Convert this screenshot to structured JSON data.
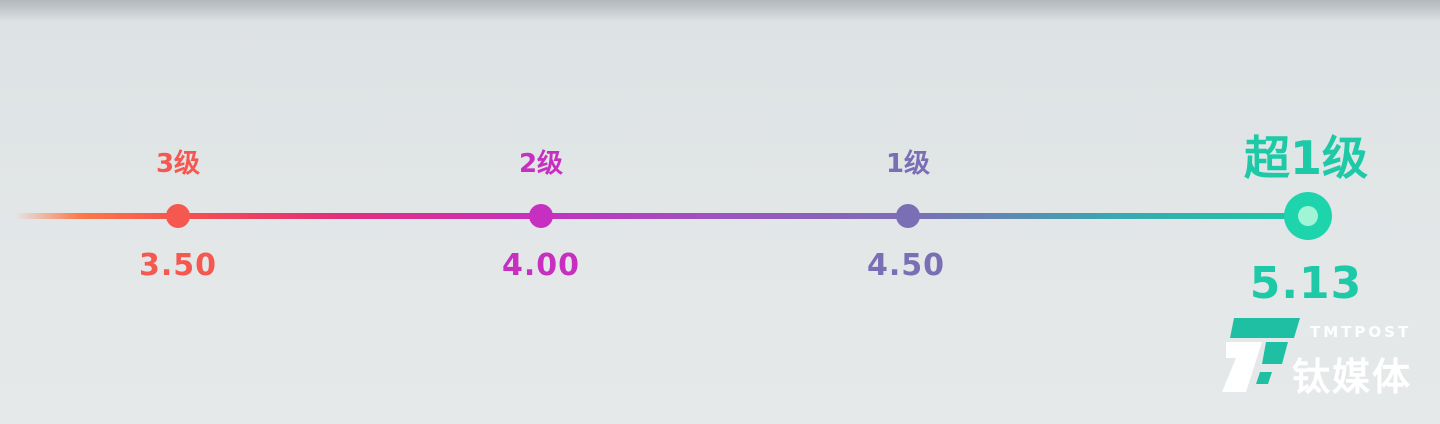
{
  "scale": {
    "points": [
      {
        "level": "3级",
        "value": "3.50",
        "color": "#f4584f"
      },
      {
        "level": "2级",
        "value": "4.00",
        "color": "#c62fbf"
      },
      {
        "level": "1级",
        "value": "4.50",
        "color": "#7a6fb5"
      },
      {
        "level": "超1级",
        "value": "5.13",
        "color": "#1dc9a6"
      }
    ]
  },
  "logo": {
    "en": "TMTPOST",
    "cn": "钛媒体",
    "brand_color": "#1fbfa4"
  }
}
